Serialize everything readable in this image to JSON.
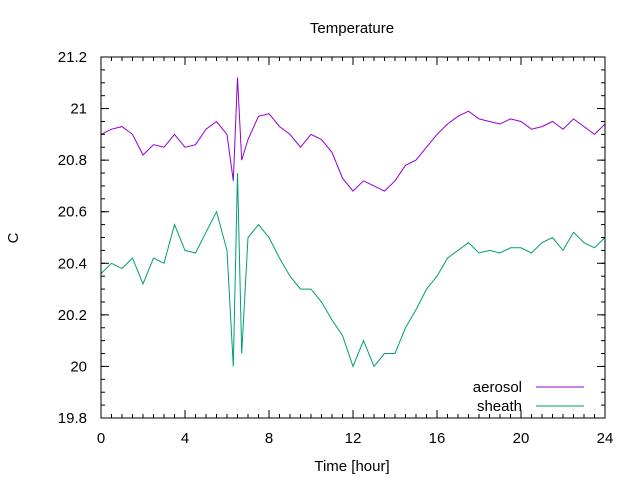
{
  "chart_data": {
    "type": "line",
    "title": "Temperature",
    "xlabel": "Time [hour]",
    "ylabel": "C",
    "xlim": [
      0,
      24
    ],
    "ylim": [
      19.8,
      21.2
    ],
    "x_ticks": [
      0,
      4,
      8,
      12,
      16,
      20,
      24
    ],
    "x_tick_labels": [
      "0",
      "4",
      "8",
      "12",
      "16",
      "20",
      "24"
    ],
    "y_ticks": [
      19.8,
      20,
      20.2,
      20.4,
      20.6,
      20.8,
      21,
      21.2
    ],
    "y_tick_labels": [
      "19.8",
      "20",
      "20.2",
      "20.4",
      "20.6",
      "20.8",
      "21",
      "21.2"
    ],
    "x_minor_step": 0.5,
    "y_minor_step": 0.05,
    "grid": false,
    "legend_position": "bottom-right",
    "series": [
      {
        "name": "aerosol",
        "color": "#9400d3",
        "x": [
          0,
          0.5,
          1,
          1.5,
          2,
          2.5,
          3,
          3.5,
          4,
          4.5,
          5,
          5.5,
          6,
          6.3,
          6.5,
          6.7,
          7,
          7.5,
          8,
          8.5,
          9,
          9.5,
          10,
          10.5,
          11,
          11.5,
          12,
          12.5,
          13,
          13.5,
          14,
          14.5,
          15,
          15.5,
          16,
          16.5,
          17,
          17.5,
          18,
          18.5,
          19,
          19.5,
          20,
          20.5,
          21,
          21.5,
          22,
          22.5,
          23,
          23.5,
          24
        ],
        "y": [
          20.9,
          20.92,
          20.93,
          20.9,
          20.82,
          20.86,
          20.85,
          20.9,
          20.85,
          20.86,
          20.92,
          20.95,
          20.9,
          20.72,
          21.12,
          20.8,
          20.88,
          20.97,
          20.98,
          20.93,
          20.9,
          20.85,
          20.9,
          20.88,
          20.83,
          20.73,
          20.68,
          20.72,
          20.7,
          20.68,
          20.72,
          20.78,
          20.8,
          20.85,
          20.9,
          20.94,
          20.97,
          20.99,
          20.96,
          20.95,
          20.94,
          20.96,
          20.95,
          20.92,
          20.93,
          20.95,
          20.92,
          20.96,
          20.93,
          20.9,
          20.94
        ]
      },
      {
        "name": "sheath",
        "color": "#009e73",
        "x": [
          0,
          0.5,
          1,
          1.5,
          2,
          2.5,
          3,
          3.5,
          4,
          4.5,
          5,
          5.5,
          6,
          6.3,
          6.5,
          6.7,
          7,
          7.5,
          8,
          8.5,
          9,
          9.5,
          10,
          10.5,
          11,
          11.5,
          12,
          12.5,
          13,
          13.5,
          14,
          14.5,
          15,
          15.5,
          16,
          16.5,
          17,
          17.5,
          18,
          18.5,
          19,
          19.5,
          20,
          20.5,
          21,
          21.5,
          22,
          22.5,
          23,
          23.5,
          24
        ],
        "y": [
          20.36,
          20.4,
          20.38,
          20.42,
          20.32,
          20.42,
          20.4,
          20.55,
          20.45,
          20.44,
          20.52,
          20.6,
          20.45,
          20.0,
          20.75,
          20.05,
          20.5,
          20.55,
          20.5,
          20.42,
          20.35,
          20.3,
          20.3,
          20.25,
          20.18,
          20.12,
          20.0,
          20.1,
          20.0,
          20.05,
          20.05,
          20.15,
          20.22,
          20.3,
          20.35,
          20.42,
          20.45,
          20.48,
          20.44,
          20.45,
          20.44,
          20.46,
          20.46,
          20.44,
          20.48,
          20.5,
          20.45,
          20.52,
          20.48,
          20.46,
          20.5
        ]
      }
    ]
  }
}
